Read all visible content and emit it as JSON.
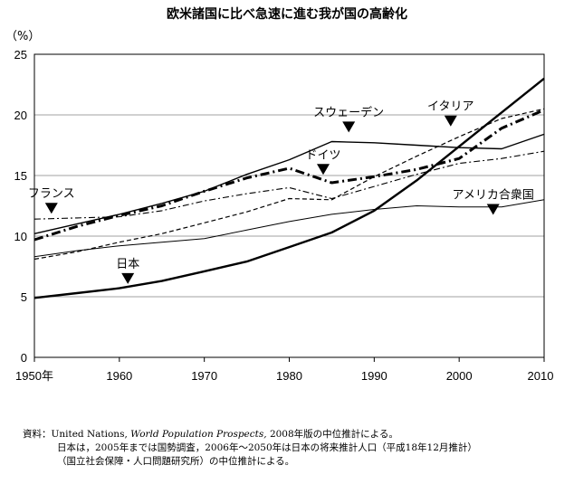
{
  "chart_data": {
    "type": "line",
    "title": "欧米諸国に比べ急速に進む我が国の高齢化",
    "ylabel": "（%）",
    "xlabel": "",
    "xlim": [
      1950,
      2010
    ],
    "ylim": [
      0,
      25
    ],
    "x_ticks": [
      1950,
      1960,
      1970,
      1980,
      1990,
      2000,
      2010
    ],
    "x_tick_labels": [
      "1950年",
      "1960",
      "1970",
      "1980",
      "1990",
      "2000",
      "2010"
    ],
    "y_ticks": [
      0,
      5,
      10,
      15,
      20,
      25
    ],
    "y_tick_labels": [
      "0",
      "5",
      "10",
      "15",
      "20",
      "25"
    ],
    "grid": "horizontal",
    "series": [
      {
        "name": "日本",
        "style": "solid-thick",
        "x": [
          1950,
          1955,
          1960,
          1965,
          1970,
          1975,
          1980,
          1985,
          1990,
          1995,
          2000,
          2005,
          2010
        ],
        "y": [
          4.9,
          5.3,
          5.7,
          6.3,
          7.1,
          7.9,
          9.1,
          10.3,
          12.1,
          14.6,
          17.4,
          20.2,
          23.0
        ]
      },
      {
        "name": "スウェーデン",
        "style": "solid",
        "x": [
          1950,
          1955,
          1960,
          1965,
          1970,
          1975,
          1980,
          1985,
          1990,
          1995,
          2000,
          2005,
          2010
        ],
        "y": [
          10.2,
          11.0,
          11.8,
          12.7,
          13.7,
          15.1,
          16.3,
          17.8,
          17.7,
          17.5,
          17.3,
          17.2,
          18.4
        ]
      },
      {
        "name": "イタリア",
        "style": "dashed",
        "x": [
          1950,
          1955,
          1960,
          1965,
          1970,
          1975,
          1980,
          1985,
          1990,
          1995,
          2000,
          2005,
          2010
        ],
        "y": [
          8.1,
          8.7,
          9.5,
          10.2,
          11.1,
          12.0,
          13.1,
          13.0,
          14.9,
          16.6,
          18.2,
          19.7,
          20.5
        ]
      },
      {
        "name": "ドイツ",
        "style": "dash-dot-thick",
        "x": [
          1950,
          1955,
          1960,
          1965,
          1970,
          1975,
          1980,
          1985,
          1990,
          1995,
          2000,
          2005,
          2010
        ],
        "y": [
          9.7,
          10.8,
          11.7,
          12.5,
          13.7,
          14.8,
          15.6,
          14.4,
          14.9,
          15.5,
          16.4,
          18.9,
          20.4
        ]
      },
      {
        "name": "フランス",
        "style": "dash-dot",
        "x": [
          1950,
          1955,
          1960,
          1965,
          1970,
          1975,
          1980,
          1985,
          1990,
          1995,
          2000,
          2005,
          2010
        ],
        "y": [
          11.4,
          11.5,
          11.6,
          12.1,
          12.9,
          13.5,
          14.0,
          13.1,
          14.1,
          15.1,
          16.0,
          16.4,
          17.0
        ]
      },
      {
        "name": "アメリカ合衆国",
        "style": "solid-thin",
        "x": [
          1950,
          1955,
          1960,
          1965,
          1970,
          1975,
          1980,
          1985,
          1990,
          1995,
          2000,
          2005,
          2010
        ],
        "y": [
          8.3,
          8.8,
          9.2,
          9.5,
          9.8,
          10.5,
          11.2,
          11.8,
          12.2,
          12.5,
          12.4,
          12.4,
          13.0
        ]
      }
    ],
    "annotations": [
      {
        "text": "日本",
        "x": 1961,
        "y": 6.5,
        "marker_x": 1961,
        "marker_y": 6.5
      },
      {
        "text": "スウェーデン",
        "x": 1987,
        "y": 19.0,
        "marker_x": 1987,
        "marker_y": 19.0
      },
      {
        "text": "イタリア",
        "x": 1999,
        "y": 19.5,
        "marker_x": 1999,
        "marker_y": 19.5
      },
      {
        "text": "ドイツ",
        "x": 1984,
        "y": 15.5,
        "marker_x": 1984,
        "marker_y": 15.5
      },
      {
        "text": "フランス",
        "x": 1952,
        "y": 12.3,
        "marker_x": 1952,
        "marker_y": 12.3
      },
      {
        "text": "アメリカ合衆国",
        "x": 2004,
        "y": 12.2,
        "marker_x": 2004,
        "marker_y": 12.2
      }
    ]
  },
  "source": {
    "line1_prefix": "資料：United Nations, ",
    "line1_italic": "World Population Prospects,",
    "line1_suffix": " 2008年版の中位推計による。",
    "line2": "日本は，2005年までは国勢調査，2006年～2050年は日本の将来推計人口（平成18年12月推計）",
    "line3": "（国立社会保障・人口問題研究所）の中位推計による。"
  }
}
